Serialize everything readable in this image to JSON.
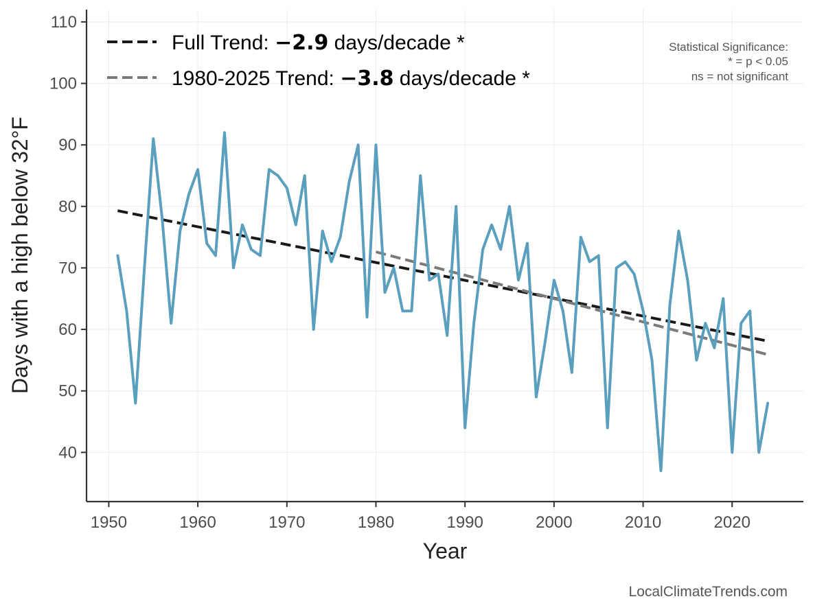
{
  "chart_data": {
    "type": "line",
    "xlabel": "Year",
    "ylabel": "Days with a high below 32°F",
    "xlim": [
      1947.5,
      2028
    ],
    "ylim": [
      32,
      112
    ],
    "xticks": [
      1950,
      1960,
      1970,
      1980,
      1990,
      2000,
      2010,
      2020
    ],
    "yticks": [
      40,
      50,
      60,
      70,
      80,
      90,
      100,
      110
    ],
    "grid": true,
    "legend_position": "top-left",
    "series": [
      {
        "color": "#5a9fbe",
        "x": [
          1951,
          1952,
          1953,
          1954,
          1955,
          1956,
          1957,
          1958,
          1959,
          1960,
          1961,
          1962,
          1963,
          1964,
          1965,
          1966,
          1967,
          1968,
          1969,
          1970,
          1971,
          1972,
          1973,
          1974,
          1975,
          1976,
          1977,
          1978,
          1979,
          1980,
          1981,
          1982,
          1983,
          1984,
          1985,
          1986,
          1987,
          1988,
          1989,
          1990,
          1991,
          1992,
          1993,
          1994,
          1995,
          1996,
          1997,
          1998,
          1999,
          2000,
          2001,
          2002,
          2003,
          2004,
          2005,
          2006,
          2007,
          2008,
          2009,
          2010,
          2011,
          2012,
          2013,
          2014,
          2015,
          2016,
          2017,
          2018,
          2019,
          2020,
          2021,
          2022,
          2023,
          2024
        ],
        "values": [
          72,
          63,
          48,
          70,
          91,
          78,
          61,
          76,
          82,
          86,
          74,
          72,
          92,
          70,
          77,
          73,
          72,
          86,
          85,
          83,
          77,
          85,
          60,
          76,
          71,
          75,
          84,
          90,
          62,
          90,
          66,
          70,
          63,
          63,
          85,
          68,
          69,
          59,
          80,
          44,
          61,
          73,
          77,
          73,
          80,
          68,
          74,
          49,
          58,
          68,
          63,
          53,
          75,
          71,
          72,
          44,
          70,
          71,
          69,
          63,
          55,
          37,
          64,
          76,
          68,
          55,
          61,
          57,
          65,
          40,
          61,
          63,
          40,
          48
        ]
      }
    ],
    "trends": [
      {
        "label_prefix": "Full Trend: ",
        "value_text": "−2.9",
        "label_suffix": " days/decade *",
        "color": "#1a1a1a",
        "x_start": 1951,
        "y_start": 79.3,
        "x_end": 2024,
        "y_end": 58.1
      },
      {
        "label_prefix": "1980-2025 Trend: ",
        "value_text": "−3.8",
        "label_suffix": " days/decade *",
        "color": "#7a7a7a",
        "x_start": 1980,
        "y_start": 72.6,
        "x_end": 2024,
        "y_end": 55.9
      }
    ],
    "significance_note": [
      "Statistical Significance:",
      "* = p < 0.05",
      "ns = not significant"
    ],
    "credit": "LocalClimateTrends.com"
  }
}
